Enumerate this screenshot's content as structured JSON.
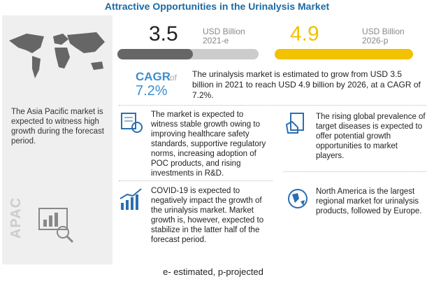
{
  "header": {
    "title": "Attractive Opportunities in the Urinalysis Market"
  },
  "market_2021": {
    "value": "3.5",
    "unit": "USD Billion",
    "year": "2021-e"
  },
  "market_2026": {
    "value": "4.9",
    "unit": "USD Billion",
    "year": "2026-p"
  },
  "cagr": {
    "label": "CAGR",
    "of": "of",
    "value": "7.2%"
  },
  "summary": "The urinalysis market is estimated to grow from USD 3.5 billion in 2021 to reach USD 4.9 billion by 2026, at a CAGR of 7.2%.",
  "region": {
    "text": "The Asia Pacific market is expected to witness high growth during the forecast period.",
    "tag": "APAC"
  },
  "insights": [
    "The market is expected to witness stable growth owing to improving healthcare safety standards, supportive regulatory norms, increasing adoption of POC products, and rising investments in R&D.",
    "The rising global prevalence of target diseases is expected to offer potential growth opportunities to market players.",
    "COVID-19 is expected to negatively impact the growth of the urinalysis market. Market growth is, however, expected to stabilize in the latter half of the forecast period.",
    "North America is the largest regional market for urinalysis products, followed by Europe."
  ],
  "footnote": "e- estimated, p-projected"
}
